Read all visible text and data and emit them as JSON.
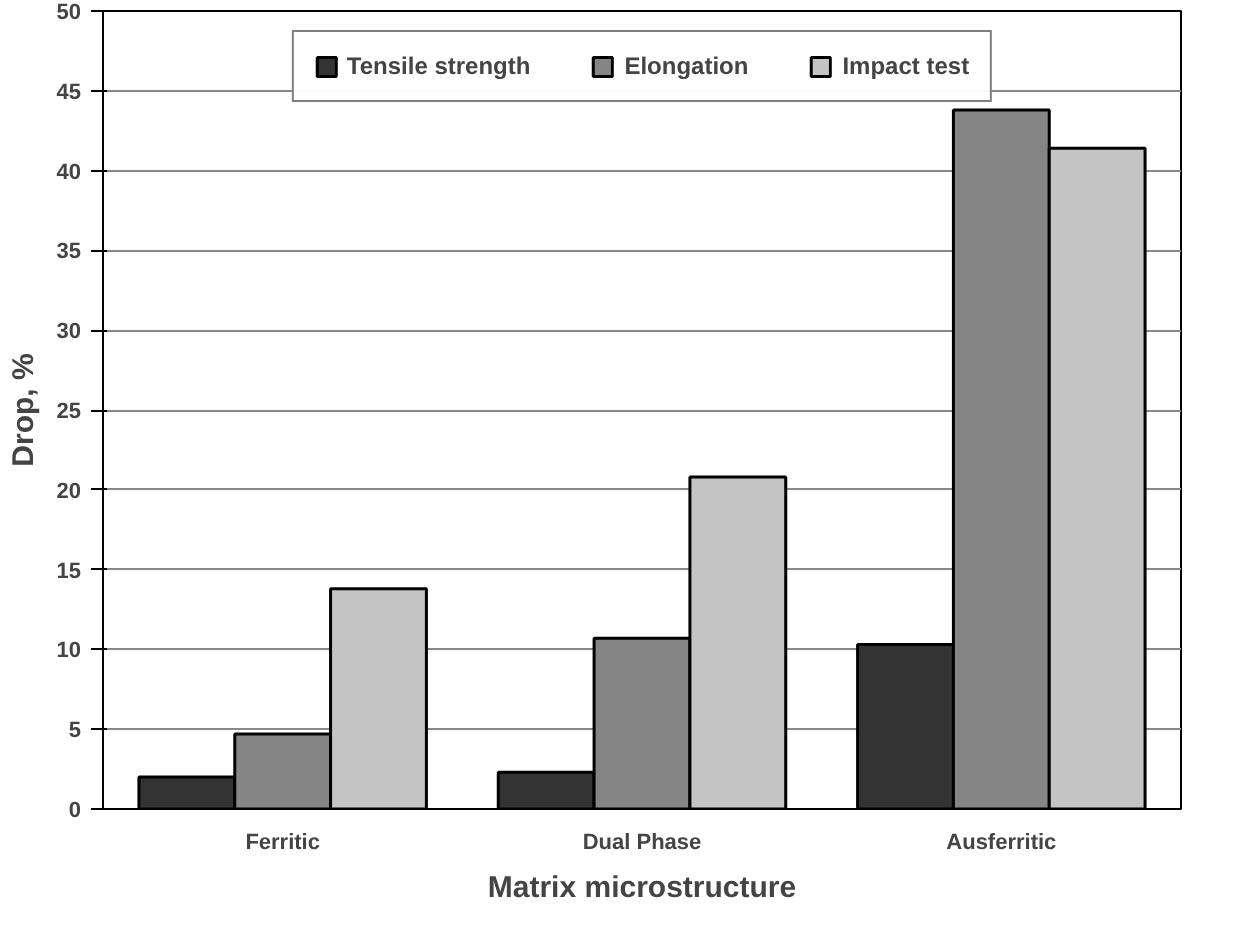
{
  "chart_data": {
    "type": "bar",
    "xlabel": "Matrix microstructure",
    "ylabel": "Drop, %",
    "categories": [
      "Ferritic",
      "Dual Phase",
      "Ausferritic"
    ],
    "series": [
      {
        "name": "Tensile strength",
        "color": "#333333",
        "values": [
          2.0,
          2.3,
          10.3
        ]
      },
      {
        "name": "Elongation",
        "color": "#858585",
        "values": [
          4.7,
          10.7,
          43.8
        ]
      },
      {
        "name": "Impact test",
        "color": "#c4c4c4",
        "values": [
          13.8,
          20.8,
          41.4
        ]
      }
    ],
    "ylim": [
      0,
      50
    ],
    "yticks": [
      0,
      5,
      10,
      15,
      20,
      25,
      30,
      35,
      40,
      45,
      50
    ],
    "grid": "y",
    "legend": "top"
  }
}
